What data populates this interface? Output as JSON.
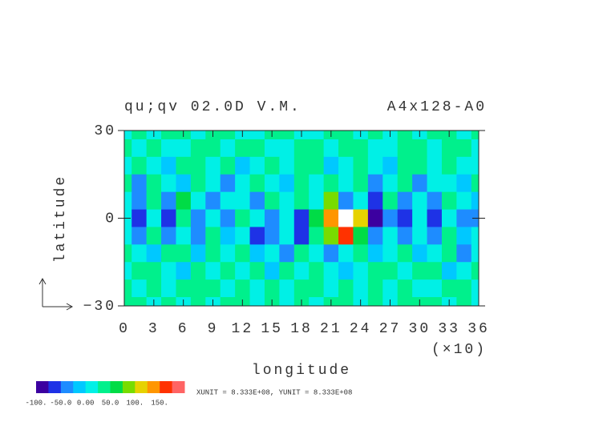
{
  "chart_data": {
    "type": "contour",
    "title": "qu;qv 02.0D V.M.",
    "subtitle": "A4x128-A0",
    "x_label": "longitude",
    "x_multiplier": "(×10)",
    "y_label": "latitude",
    "unit_note": "XUNIT = 8.333E+08, YUNIT = 8.333E+08",
    "xlim": [
      0,
      36
    ],
    "xticks": [
      0,
      3,
      6,
      9,
      12,
      15,
      18,
      21,
      24,
      27,
      30,
      33,
      36
    ],
    "ylim": [
      -30,
      30
    ],
    "yticks": [
      30,
      0,
      {
        "value": -30,
        "label": "−30"
      }
    ],
    "x": [
      0,
      1.5,
      3,
      4.5,
      6,
      7.5,
      9,
      10.5,
      12,
      13.5,
      15,
      16.5,
      18,
      19.5,
      21,
      22.5,
      24,
      25.5,
      27,
      28.5,
      30,
      31.5,
      33,
      34.5,
      36
    ],
    "y": [
      30,
      24,
      18,
      12,
      6,
      0,
      -6,
      -12,
      -18,
      -24,
      -30
    ],
    "z": [
      [
        20,
        35,
        10,
        30,
        40,
        15,
        25,
        35,
        20,
        10,
        30,
        45,
        20,
        15,
        35,
        25,
        10,
        30,
        20,
        40,
        15,
        25,
        35,
        20,
        30
      ],
      [
        30,
        15,
        40,
        20,
        10,
        35,
        25,
        5,
        30,
        40,
        20,
        10,
        35,
        25,
        15,
        30,
        40,
        20,
        10,
        25,
        35,
        15,
        30,
        40,
        20
      ],
      [
        10,
        30,
        20,
        -10,
        25,
        40,
        15,
        30,
        -15,
        20,
        35,
        10,
        25,
        40,
        -10,
        20,
        30,
        15,
        -20,
        35,
        25,
        10,
        40,
        20,
        15
      ],
      [
        25,
        -30,
        35,
        15,
        -20,
        30,
        10,
        -40,
        20,
        35,
        15,
        -10,
        30,
        20,
        40,
        10,
        25,
        -30,
        15,
        30,
        -35,
        20,
        10,
        -25,
        30
      ],
      [
        15,
        -50,
        30,
        -40,
        60,
        10,
        -35,
        20,
        5,
        -45,
        30,
        15,
        40,
        20,
        75,
        -30,
        10,
        -55,
        25,
        -40,
        15,
        -35,
        30,
        20,
        -20
      ],
      [
        10,
        -60,
        20,
        -75,
        45,
        -30,
        15,
        -40,
        25,
        10,
        -50,
        20,
        -70,
        60,
        130,
        260,
        120,
        -80,
        -40,
        -60,
        20,
        -70,
        10,
        -45,
        -30
      ],
      [
        20,
        -40,
        35,
        -30,
        15,
        -45,
        25,
        -20,
        10,
        -55,
        -30,
        15,
        -60,
        40,
        80,
        150,
        70,
        -50,
        20,
        -30,
        15,
        -40,
        25,
        -20,
        10
      ],
      [
        30,
        15,
        -20,
        25,
        40,
        -15,
        30,
        10,
        35,
        -25,
        20,
        -40,
        25,
        15,
        -30,
        20,
        35,
        -20,
        10,
        30,
        -25,
        15,
        40,
        -30,
        20
      ],
      [
        15,
        40,
        25,
        10,
        -15,
        35,
        20,
        45,
        15,
        30,
        -20,
        25,
        10,
        35,
        20,
        -25,
        15,
        30,
        40,
        10,
        25,
        35,
        -15,
        20,
        30
      ],
      [
        40,
        20,
        35,
        15,
        30,
        25,
        45,
        10,
        30,
        20,
        40,
        15,
        30,
        25,
        10,
        35,
        20,
        45,
        15,
        30,
        20,
        10,
        35,
        25,
        15
      ],
      [
        25,
        35,
        15,
        40,
        20,
        30,
        10,
        25,
        35,
        15,
        45,
        20,
        30,
        10,
        25,
        40,
        15,
        30,
        20,
        35,
        25,
        40,
        15,
        30,
        20
      ]
    ],
    "levels": [
      -100,
      -75,
      -50,
      -25,
      0,
      25,
      50,
      75,
      100,
      125,
      150,
      175,
      200
    ],
    "colors": [
      "#3c00a0",
      "#1e32e6",
      "#1e8cff",
      "#00c8ff",
      "#00f0e6",
      "#00f08c",
      "#00dc46",
      "#78dc00",
      "#e6d200",
      "#ff9600",
      "#ff3200",
      "#ff6464"
    ],
    "colorbar_ticks": [
      {
        "value": -100,
        "label": "-100."
      },
      {
        "value": -50,
        "label": "-50.0"
      },
      {
        "value": 0,
        "label": "0.00"
      },
      {
        "value": 50,
        "label": "50.0"
      },
      {
        "value": 100,
        "label": "100."
      },
      {
        "value": 150,
        "label": "150."
      }
    ]
  }
}
